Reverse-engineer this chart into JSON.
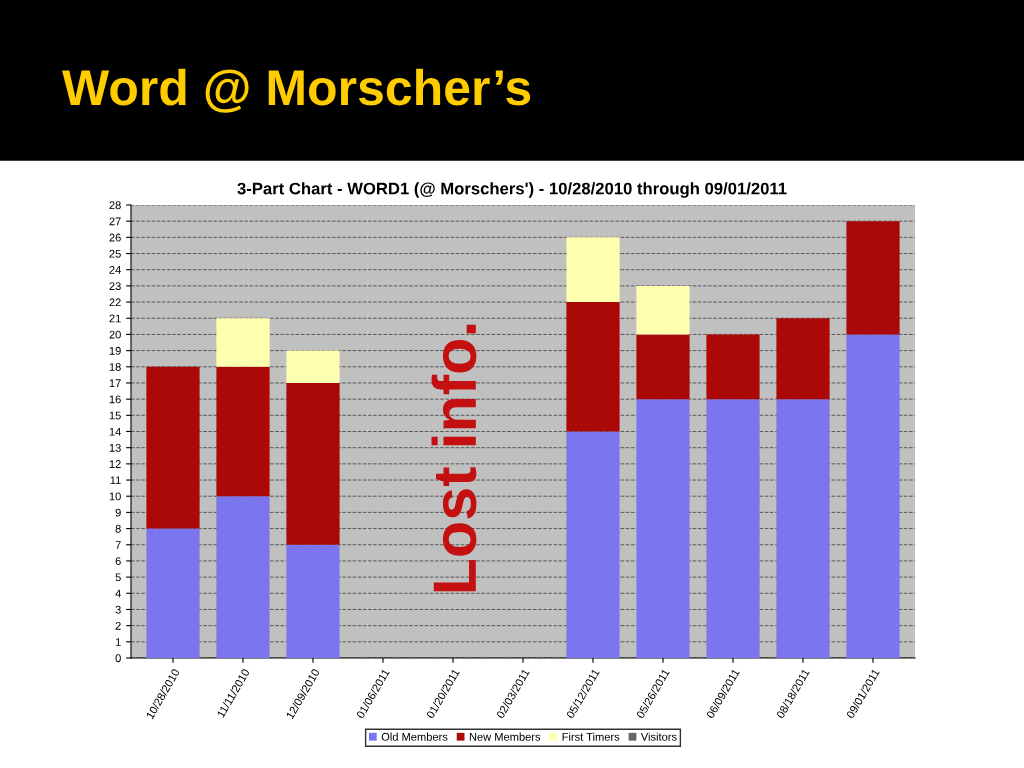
{
  "chart_data": {
    "type": "bar",
    "stacked": true,
    "title": "Word @ Morscher’s",
    "subtitle": "3-Part Chart - WORD1 (@ Morschers') - 10/28/2010 through 09/01/2011",
    "annotations": [
      "Lost info."
    ],
    "categories": [
      "10/28/2010",
      "11/11/2010",
      "12/09/2010",
      "01/06/2011",
      "01/20/2011",
      "02/03/2011",
      "05/12/2011",
      "05/26/2011",
      "06/09/2011",
      "08/18/2011",
      "09/01/2011"
    ],
    "series": [
      {
        "name": "Old Members",
        "color": "#7b76ee",
        "values": [
          8,
          10,
          7,
          null,
          null,
          null,
          14,
          16,
          16,
          16,
          20
        ]
      },
      {
        "name": "New Members",
        "color": "#ab0808",
        "values": [
          10,
          8,
          10,
          null,
          null,
          null,
          8,
          4,
          4,
          5,
          7
        ]
      },
      {
        "name": "First Timers",
        "color": "#ffffb0",
        "values": [
          0,
          3,
          2,
          null,
          null,
          null,
          4,
          3,
          0,
          0,
          0
        ]
      },
      {
        "name": "Visitors",
        "color": "#666666",
        "values": [
          0,
          0,
          0,
          null,
          null,
          null,
          0,
          0,
          0,
          0,
          0
        ]
      }
    ],
    "ylim": [
      0,
      28
    ],
    "yticks": [
      0,
      1,
      2,
      3,
      4,
      5,
      6,
      7,
      8,
      9,
      10,
      11,
      12,
      13,
      14,
      15,
      16,
      17,
      18,
      19,
      20,
      21,
      22,
      23,
      24,
      25,
      26,
      27,
      28
    ],
    "grid": "y",
    "legend": "bottom"
  }
}
